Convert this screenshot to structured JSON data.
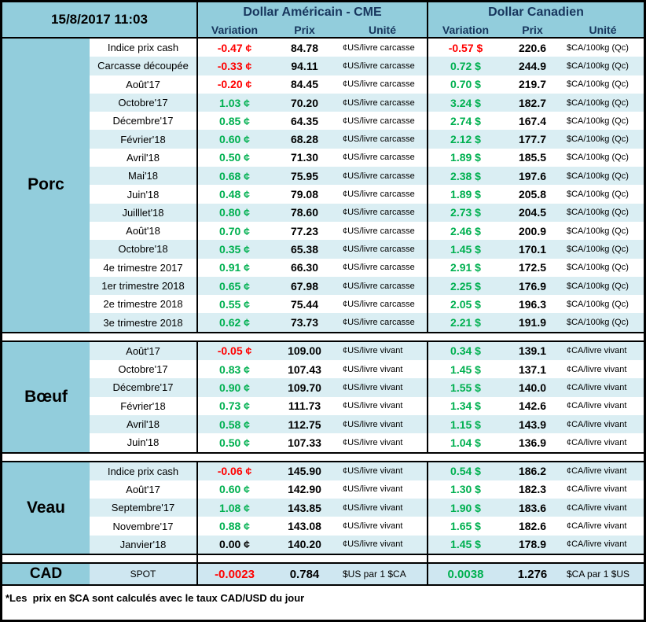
{
  "meta": {
    "date_label": "15/8/2017 11:03"
  },
  "colors": {
    "teal": "#92CDDC",
    "stripe": "#DAEEF3",
    "cad_row_bg": "#CFE7F1",
    "header_text": "#17365D",
    "negative": "#FF0000",
    "positive": "#00B050",
    "neutral": "#000000",
    "border": "#000000"
  },
  "header": {
    "us_group": {
      "title": "Dollar Américain - CME",
      "cols": [
        "Variation",
        "Prix",
        "Unité"
      ]
    },
    "ca_group": {
      "title": "Dollar Canadien",
      "cols": [
        "Variation",
        "Prix",
        "Unité"
      ]
    }
  },
  "sections": [
    {
      "name": "Porc",
      "stripe_start": "white",
      "us_unit": "¢US/livre carcasse",
      "ca_unit": "$CA/100kg (Qc)",
      "rows": [
        {
          "label": "Indice prix cash",
          "us_var": "-0.47 ¢",
          "us_price": "84.78",
          "ca_var": "-0.57 $",
          "ca_price": "220.6"
        },
        {
          "label": "Carcasse découpée",
          "us_var": "-0.33 ¢",
          "us_price": "94.11",
          "ca_var": "0.72 $",
          "ca_price": "244.9"
        },
        {
          "label": "Août'17",
          "us_var": "-0.20 ¢",
          "us_price": "84.45",
          "ca_var": "0.70 $",
          "ca_price": "219.7"
        },
        {
          "label": "Octobre'17",
          "us_var": "1.03 ¢",
          "us_price": "70.20",
          "ca_var": "3.24 $",
          "ca_price": "182.7"
        },
        {
          "label": "Décembre'17",
          "us_var": "0.85 ¢",
          "us_price": "64.35",
          "ca_var": "2.74 $",
          "ca_price": "167.4"
        },
        {
          "label": "Février'18",
          "us_var": "0.60 ¢",
          "us_price": "68.28",
          "ca_var": "2.12 $",
          "ca_price": "177.7"
        },
        {
          "label": "Avril'18",
          "us_var": "0.50 ¢",
          "us_price": "71.30",
          "ca_var": "1.89 $",
          "ca_price": "185.5"
        },
        {
          "label": "Mai'18",
          "us_var": "0.68 ¢",
          "us_price": "75.95",
          "ca_var": "2.38 $",
          "ca_price": "197.6"
        },
        {
          "label": "Juin'18",
          "us_var": "0.48 ¢",
          "us_price": "79.08",
          "ca_var": "1.89 $",
          "ca_price": "205.8"
        },
        {
          "label": "Juilllet'18",
          "us_var": "0.80 ¢",
          "us_price": "78.60",
          "ca_var": "2.73 $",
          "ca_price": "204.5"
        },
        {
          "label": "Août'18",
          "us_var": "0.70 ¢",
          "us_price": "77.23",
          "ca_var": "2.46 $",
          "ca_price": "200.9"
        },
        {
          "label": "Octobre'18",
          "us_var": "0.35 ¢",
          "us_price": "65.38",
          "ca_var": "1.45 $",
          "ca_price": "170.1"
        },
        {
          "label": "4e trimestre 2017",
          "us_var": "0.91 ¢",
          "us_price": "66.30",
          "ca_var": "2.91 $",
          "ca_price": "172.5"
        },
        {
          "label": "1er trimestre 2018",
          "us_var": "0.65 ¢",
          "us_price": "67.98",
          "ca_var": "2.25 $",
          "ca_price": "176.9"
        },
        {
          "label": "2e trimestre 2018",
          "us_var": "0.55 ¢",
          "us_price": "75.44",
          "ca_var": "2.05 $",
          "ca_price": "196.3"
        },
        {
          "label": "3e trimestre 2018",
          "us_var": "0.62 ¢",
          "us_price": "73.73",
          "ca_var": "2.21 $",
          "ca_price": "191.9"
        }
      ]
    },
    {
      "name": "Bœuf",
      "stripe_start": "blue",
      "us_unit": "¢US/livre vivant",
      "ca_unit": "¢CA/livre vivant",
      "rows": [
        {
          "label": "Août'17",
          "us_var": "-0.05 ¢",
          "us_price": "109.00",
          "ca_var": "0.34 $",
          "ca_price": "139.1"
        },
        {
          "label": "Octobre'17",
          "us_var": "0.83 ¢",
          "us_price": "107.43",
          "ca_var": "1.45 $",
          "ca_price": "137.1"
        },
        {
          "label": "Décembre'17",
          "us_var": "0.90 ¢",
          "us_price": "109.70",
          "ca_var": "1.55 $",
          "ca_price": "140.0"
        },
        {
          "label": "Février'18",
          "us_var": "0.73 ¢",
          "us_price": "111.73",
          "ca_var": "1.34 $",
          "ca_price": "142.6"
        },
        {
          "label": "Avril'18",
          "us_var": "0.58 ¢",
          "us_price": "112.75",
          "ca_var": "1.15 $",
          "ca_price": "143.9"
        },
        {
          "label": "Juin'18",
          "us_var": "0.50 ¢",
          "us_price": "107.33",
          "ca_var": "1.04 $",
          "ca_price": "136.9"
        }
      ]
    },
    {
      "name": "Veau",
      "stripe_start": "blue",
      "us_unit": "¢US/livre vivant",
      "ca_unit": "¢CA/livre vivant",
      "rows": [
        {
          "label": "Indice prix cash",
          "us_var": "-0.06 ¢",
          "us_price": "145.90",
          "ca_var": "0.54 $",
          "ca_price": "186.2"
        },
        {
          "label": "Août'17",
          "us_var": "0.60 ¢",
          "us_price": "142.90",
          "ca_var": "1.30 $",
          "ca_price": "182.3"
        },
        {
          "label": "Septembre'17",
          "us_var": "1.08 ¢",
          "us_price": "143.85",
          "ca_var": "1.90 $",
          "ca_price": "183.6"
        },
        {
          "label": "Novembre'17",
          "us_var": "0.88 ¢",
          "us_price": "143.08",
          "ca_var": "1.65 $",
          "ca_price": "182.6"
        },
        {
          "label": "Janvier'18",
          "us_var": "0.00 ¢",
          "us_price": "140.20",
          "ca_var": "1.45 $",
          "ca_price": "178.9"
        }
      ]
    },
    {
      "name": "CAD",
      "stripe_start": "cad",
      "us_unit": "$US par 1 $CA",
      "ca_unit": "$CA par 1 $US",
      "rows": [
        {
          "label": "SPOT",
          "us_var": "-0.0023",
          "us_price": "0.784",
          "ca_var": "0.0038",
          "ca_price": "1.276"
        }
      ]
    }
  ],
  "footnote": "*Les  prix en $CA sont calculés avec le taux CAD/USD du jour"
}
